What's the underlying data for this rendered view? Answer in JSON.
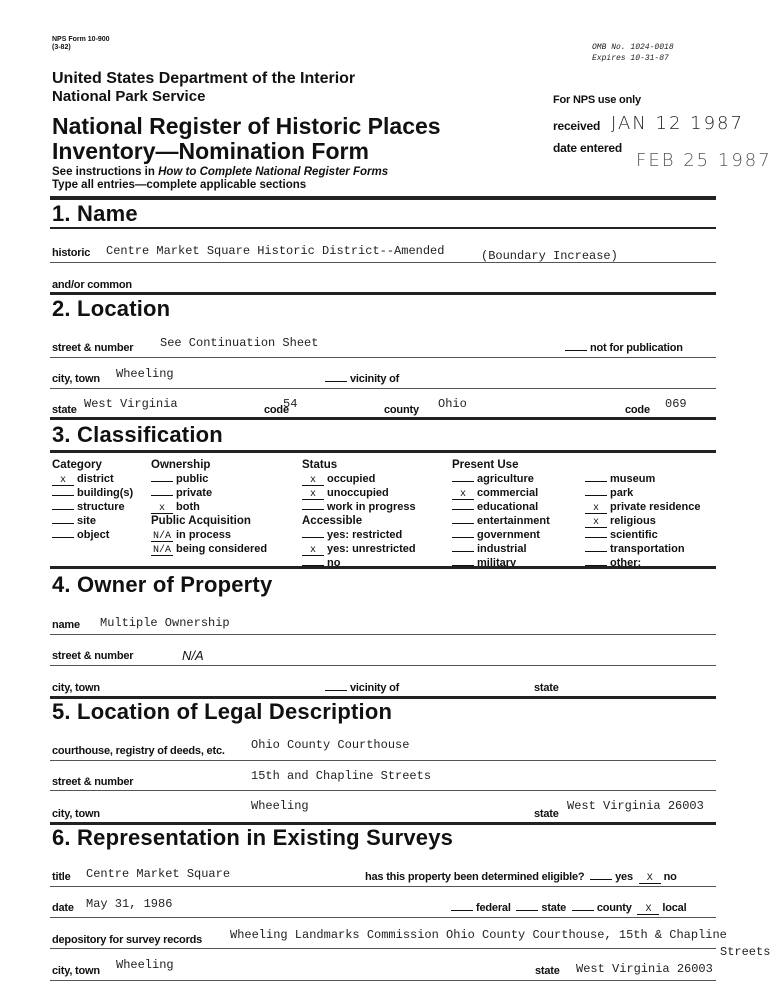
{
  "header": {
    "form_no": "NPS Form 10-900",
    "form_rev": "(3-82)",
    "omb": "OMB No. 1024-0018",
    "expires": "Expires  10-31-87",
    "dept": "United States Department of the Interior",
    "agency": "National Park Service",
    "title1": "National Register of Historic Places",
    "title2": "Inventory—Nomination Form",
    "instr_pre": "See instructions in ",
    "instr_italic": "How to Complete National Register Forms",
    "instr2": "Type all entries—complete applicable sections",
    "nps_use": "For NPS use only",
    "received_label": "received",
    "received_value": "JAN 12 1987",
    "entered_label": "date entered",
    "entered_value": "FEB 25 1987"
  },
  "s1": {
    "heading": "1. Name",
    "historic_label": "historic",
    "historic_value": "Centre Market Square Historic District--Amended",
    "historic_extra": "(Boundary Increase)",
    "common_label": "and/or common"
  },
  "s2": {
    "heading": "2. Location",
    "street_label": "street & number",
    "street_value": "See Continuation Sheet",
    "nfp_label": "not for publication",
    "city_label": "city, town",
    "city_value": "Wheeling",
    "vicinity_label": "vicinity of",
    "state_label": "state",
    "state_value": "West Virginia",
    "code_label": "code",
    "code_value": "54",
    "county_label": "county",
    "county_value": "Ohio",
    "code2_label": "code",
    "code2_value": "069"
  },
  "s3": {
    "heading": "3. Classification",
    "columns": [
      {
        "title": "Category",
        "items": [
          {
            "mark": "x",
            "label": "district"
          },
          {
            "mark": "",
            "label": "building(s)"
          },
          {
            "mark": "",
            "label": "structure"
          },
          {
            "mark": "",
            "label": "site"
          },
          {
            "mark": "",
            "label": "object"
          }
        ]
      },
      {
        "title": "Ownership",
        "items": [
          {
            "mark": "",
            "label": "public"
          },
          {
            "mark": "",
            "label": "private"
          },
          {
            "mark": "x",
            "label": "both"
          }
        ],
        "subtitle": "Public Acquisition",
        "subitems": [
          {
            "mark": "N/A",
            "label": "in process"
          },
          {
            "mark": "N/A",
            "label": "being considered"
          }
        ]
      },
      {
        "title": "Status",
        "items": [
          {
            "mark": "x",
            "label": "occupied"
          },
          {
            "mark": "x",
            "label": "unoccupied"
          },
          {
            "mark": "",
            "label": "work in progress"
          }
        ],
        "subtitle": "Accessible",
        "subitems": [
          {
            "mark": "",
            "label": "yes: restricted"
          },
          {
            "mark": "x",
            "label": "yes: unrestricted"
          },
          {
            "mark": "",
            "label": "no"
          }
        ]
      },
      {
        "title": "Present Use",
        "items": [
          {
            "mark": "",
            "label": "agriculture"
          },
          {
            "mark": "x",
            "label": "commercial"
          },
          {
            "mark": "",
            "label": "educational"
          },
          {
            "mark": "",
            "label": "entertainment"
          },
          {
            "mark": "",
            "label": "government"
          },
          {
            "mark": "",
            "label": "industrial"
          },
          {
            "mark": "",
            "label": "military"
          }
        ]
      },
      {
        "title": "",
        "items": [
          {
            "mark": "",
            "label": "museum"
          },
          {
            "mark": "",
            "label": "park"
          },
          {
            "mark": "x",
            "label": "private residence"
          },
          {
            "mark": "x",
            "label": "religious"
          },
          {
            "mark": "",
            "label": "scientific"
          },
          {
            "mark": "",
            "label": "transportation"
          },
          {
            "mark": "",
            "label": "other:"
          }
        ]
      }
    ]
  },
  "s4": {
    "heading": "4. Owner of Property",
    "name_label": "name",
    "name_value": "Multiple Ownership",
    "street_label": "street & number",
    "street_value": "N/A",
    "city_label": "city, town",
    "vicinity_label": "vicinity of",
    "state_label": "state"
  },
  "s5": {
    "heading": "5. Location of Legal Description",
    "court_label": "courthouse, registry of deeds, etc.",
    "court_value": "Ohio County Courthouse",
    "street_label": "street & number",
    "street_value": "15th and Chapline Streets",
    "city_label": "city, town",
    "city_value": "Wheeling",
    "state_label": "state",
    "state_value": "West Virginia  26003"
  },
  "s6": {
    "heading": "6. Representation in Existing Surveys",
    "title_label": "title",
    "title_value": "Centre Market Square",
    "eligible_label": "has this property been determined eligible?",
    "yes_mark": "",
    "yes_label": "yes",
    "no_mark": "X",
    "no_label": "no",
    "date_label": "date",
    "date_value": "May 31, 1986",
    "federal_mark": "",
    "federal_label": "federal",
    "state_mark": "",
    "state_label2": "state",
    "county_mark": "",
    "county_label": "county",
    "local_mark": "X",
    "local_label": "local",
    "dep_label": "depository for survey records",
    "dep_value": "Wheeling Landmarks Commission  Ohio County Courthouse, 15th & Chapline",
    "dep_value2": "Streets",
    "city_label": "city, town",
    "city_value": "Wheeling",
    "state_label": "state",
    "state_value": "West Virginia  26003"
  }
}
